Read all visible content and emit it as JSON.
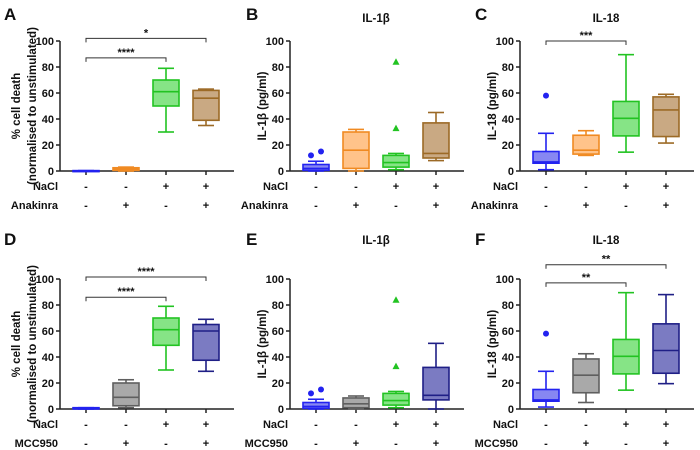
{
  "colors": {
    "vehicle": {
      "fill": "#8787f2",
      "stroke": "#2323f0"
    },
    "anakinra": {
      "fill": "#ffc38a",
      "stroke": "#f08a22"
    },
    "nacl": {
      "fill": "#86e486",
      "stroke": "#22c322"
    },
    "nacl_anakinra": {
      "fill": "#c9a983",
      "stroke": "#9c6a26"
    },
    "mcc950": {
      "fill": "#a9a9a9",
      "stroke": "#5f5f5f"
    },
    "nacl_mcc950": {
      "fill": "#7b7bc2",
      "stroke": "#1f1f86"
    }
  },
  "chart_data": [
    {
      "type": "box",
      "letter": "A",
      "title": "",
      "ylabel": [
        "% cell death",
        "(normalised to unstimulated)"
      ],
      "ylim": [
        0,
        100
      ],
      "yticks": [
        "0",
        "20",
        "40",
        "60",
        "80",
        "100"
      ],
      "rows": [
        {
          "label": "NaCl",
          "signs": [
            "-",
            "-",
            "+",
            "+"
          ]
        },
        {
          "label": "Anakinra",
          "signs": [
            "-",
            "+",
            "-",
            "+"
          ]
        }
      ],
      "groups": [
        {
          "color": "vehicle",
          "min": 0,
          "q1": 0,
          "median": 0,
          "q3": 0.3,
          "max": 0.3,
          "outliers": []
        },
        {
          "color": "anakinra",
          "min": 0,
          "q1": 0.5,
          "median": 1.5,
          "q3": 2.5,
          "max": 3,
          "outliers": []
        },
        {
          "color": "nacl",
          "min": 30,
          "q1": 50,
          "median": 61,
          "q3": 70,
          "max": 79,
          "outliers": []
        },
        {
          "color": "nacl_anakinra",
          "min": 35,
          "q1": 39,
          "median": 56,
          "q3": 62,
          "max": 63,
          "outliers": []
        }
      ],
      "significance": [
        {
          "from": 1,
          "to": 3,
          "level": 87,
          "label": "****"
        },
        {
          "from": 1,
          "to": 4,
          "level": 102,
          "label": "*"
        }
      ]
    },
    {
      "type": "box",
      "letter": "B",
      "title": "IL-1β",
      "ylabel": [
        "IL-1β (pg/ml)"
      ],
      "ylim": [
        0,
        100
      ],
      "yticks": [
        "0",
        "20",
        "40",
        "60",
        "80",
        "100"
      ],
      "rows": [
        {
          "label": "NaCl",
          "signs": [
            "-",
            "-",
            "+",
            "+"
          ]
        },
        {
          "label": "Anakinra",
          "signs": [
            "-",
            "+",
            "-",
            "+"
          ]
        }
      ],
      "groups": [
        {
          "color": "vehicle",
          "min": 0,
          "q1": 0.5,
          "median": 2,
          "q3": 5,
          "max": 7.5,
          "outliers": [
            12,
            15
          ],
          "marker": "circle"
        },
        {
          "color": "anakinra",
          "min": 0,
          "q1": 2,
          "median": 16,
          "q3": 30,
          "max": 32,
          "outliers": []
        },
        {
          "color": "nacl",
          "min": 1,
          "q1": 3,
          "median": 6.5,
          "q3": 12,
          "max": 13.5,
          "outliers": [
            33,
            84
          ],
          "marker": "triangle"
        },
        {
          "color": "nacl_anakinra",
          "min": 8,
          "q1": 10,
          "median": 13.5,
          "q3": 37,
          "max": 45,
          "outliers": []
        }
      ],
      "significance": []
    },
    {
      "type": "box",
      "letter": "C",
      "title": "IL-18",
      "ylabel": [
        "IL-18 (pg/ml)"
      ],
      "ylim": [
        0,
        100
      ],
      "yticks": [
        "0",
        "20",
        "40",
        "60",
        "80",
        "100"
      ],
      "rows": [
        {
          "label": "NaCl",
          "signs": [
            "-",
            "-",
            "+",
            "+"
          ]
        },
        {
          "label": "Anakinra",
          "signs": [
            "-",
            "+",
            "-",
            "+"
          ]
        }
      ],
      "groups": [
        {
          "color": "vehicle",
          "min": 1,
          "q1": 6,
          "median": 7,
          "q3": 15,
          "max": 29,
          "outliers": [
            58
          ],
          "marker": "circle"
        },
        {
          "color": "anakinra",
          "min": 12,
          "q1": 13,
          "median": 16,
          "q3": 27.5,
          "max": 31,
          "outliers": []
        },
        {
          "color": "nacl",
          "min": 14.5,
          "q1": 27,
          "median": 40.5,
          "q3": 53.5,
          "max": 89.5,
          "outliers": []
        },
        {
          "color": "nacl_anakinra",
          "min": 21.5,
          "q1": 26.5,
          "median": 47,
          "q3": 57,
          "max": 59,
          "outliers": []
        }
      ],
      "significance": [
        {
          "from": 1,
          "to": 3,
          "level": 100,
          "label": "***"
        }
      ]
    },
    {
      "type": "box",
      "letter": "D",
      "title": "",
      "ylabel": [
        "% cell death",
        "(normalised to unstimulated)"
      ],
      "ylim": [
        0,
        100
      ],
      "yticks": [
        "0",
        "20",
        "40",
        "60",
        "80",
        "100"
      ],
      "rows": [
        {
          "label": "NaCl",
          "signs": [
            "-",
            "-",
            "+",
            "+"
          ]
        },
        {
          "label": "MCC950",
          "signs": [
            "-",
            "+",
            "-",
            "+"
          ]
        }
      ],
      "groups": [
        {
          "color": "vehicle",
          "min": 0,
          "q1": 0,
          "median": 0.5,
          "q3": 1,
          "max": 1,
          "outliers": []
        },
        {
          "color": "mcc950",
          "min": 1,
          "q1": 2.5,
          "median": 9,
          "q3": 20,
          "max": 22.5,
          "outliers": []
        },
        {
          "color": "nacl",
          "min": 30,
          "q1": 49,
          "median": 61,
          "q3": 70,
          "max": 79,
          "outliers": []
        },
        {
          "color": "nacl_mcc950",
          "min": 29,
          "q1": 37.5,
          "median": 60,
          "q3": 65,
          "max": 69,
          "outliers": []
        }
      ],
      "significance": [
        {
          "from": 1,
          "to": 3,
          "level": 86,
          "label": "****"
        },
        {
          "from": 1,
          "to": 4,
          "level": 101.5,
          "label": "****"
        }
      ]
    },
    {
      "type": "box",
      "letter": "E",
      "title": "IL-1β",
      "ylabel": [
        "IL-1β (pg/ml)"
      ],
      "ylim": [
        0,
        100
      ],
      "yticks": [
        "0",
        "20",
        "40",
        "60",
        "80",
        "100"
      ],
      "rows": [
        {
          "label": "NaCl",
          "signs": [
            "-",
            "-",
            "+",
            "+"
          ]
        },
        {
          "label": "MCC950",
          "signs": [
            "-",
            "+",
            "-",
            "+"
          ]
        }
      ],
      "groups": [
        {
          "color": "vehicle",
          "min": 0,
          "q1": 0.5,
          "median": 2,
          "q3": 5,
          "max": 7.5,
          "outliers": [
            12,
            15
          ],
          "marker": "circle"
        },
        {
          "color": "mcc950",
          "min": 0,
          "q1": 1,
          "median": 4,
          "q3": 8.5,
          "max": 10,
          "outliers": []
        },
        {
          "color": "nacl",
          "min": 1,
          "q1": 3,
          "median": 6.5,
          "q3": 12,
          "max": 13.5,
          "outliers": [
            33,
            84
          ],
          "marker": "triangle"
        },
        {
          "color": "nacl_mcc950",
          "min": 0,
          "q1": 7,
          "median": 10.5,
          "q3": 32,
          "max": 50.5,
          "outliers": []
        }
      ],
      "significance": []
    },
    {
      "type": "box",
      "letter": "F",
      "title": "IL-18",
      "ylabel": [
        "IL-18 (pg/ml)"
      ],
      "ylim": [
        0,
        100
      ],
      "yticks": [
        "0",
        "20",
        "40",
        "60",
        "80",
        "100"
      ],
      "rows": [
        {
          "label": "NaCl",
          "signs": [
            "-",
            "-",
            "+",
            "+"
          ]
        },
        {
          "label": "MCC950",
          "signs": [
            "-",
            "+",
            "-",
            "+"
          ]
        }
      ],
      "groups": [
        {
          "color": "vehicle",
          "min": 1.5,
          "q1": 6,
          "median": 7,
          "q3": 15,
          "max": 29,
          "outliers": [
            58
          ],
          "marker": "circle"
        },
        {
          "color": "mcc950",
          "min": 5,
          "q1": 12.5,
          "median": 26,
          "q3": 38.5,
          "max": 42.5,
          "outliers": []
        },
        {
          "color": "nacl",
          "min": 14.5,
          "q1": 27,
          "median": 40.5,
          "q3": 53.5,
          "max": 89.5,
          "outliers": []
        },
        {
          "color": "nacl_mcc950",
          "min": 19.5,
          "q1": 27.5,
          "median": 45,
          "q3": 65.5,
          "max": 88,
          "outliers": []
        }
      ],
      "significance": [
        {
          "from": 1,
          "to": 3,
          "level": 97,
          "label": "**"
        },
        {
          "from": 1,
          "to": 4,
          "level": 111,
          "label": "**"
        }
      ]
    }
  ]
}
